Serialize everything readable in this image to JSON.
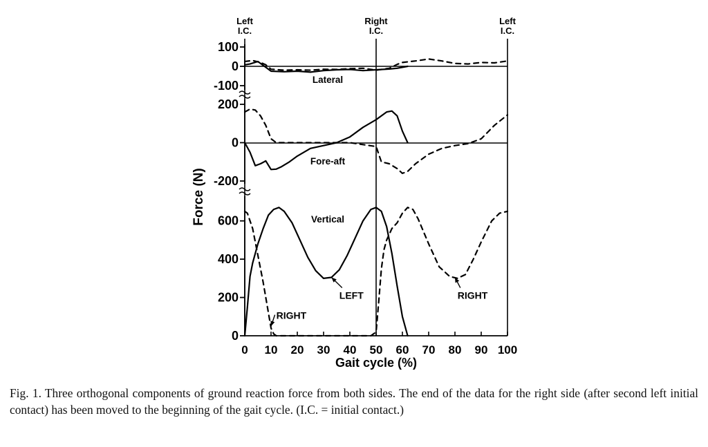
{
  "chart_data": {
    "type": "line",
    "ylabel": "Force (N)",
    "xlabel": "Gait cycle (%)",
    "x_range": [
      0,
      100
    ],
    "x_ticks": [
      "0",
      "10",
      "20",
      "30",
      "40",
      "50",
      "60",
      "70",
      "80",
      "90",
      "100"
    ],
    "event_markers": [
      {
        "x": 0,
        "label": [
          "Left",
          "I.C."
        ]
      },
      {
        "x": 50,
        "label": [
          "Right",
          "I.C."
        ]
      },
      {
        "x": 100,
        "label": [
          "Left",
          "I.C."
        ]
      }
    ],
    "line_styles": {
      "LEFT": "solid",
      "RIGHT": "dashed"
    },
    "panels": [
      {
        "id": "lateral",
        "name": "Lateral",
        "ylim": [
          -100,
          100
        ],
        "y_ticks": [
          {
            "v": 100,
            "t": "100"
          },
          {
            "v": 0,
            "t": "0"
          },
          {
            "v": -100,
            "t": "-100"
          }
        ],
        "series": [
          {
            "side": "LEFT",
            "style": "solid",
            "x": [
              0,
              2,
              5,
              7,
              10,
              15,
              20,
              25,
              30,
              35,
              40,
              45,
              50,
              55,
              58,
              62
            ],
            "y": [
              8,
              12,
              25,
              5,
              -25,
              -28,
              -25,
              -30,
              -22,
              -18,
              -16,
              -22,
              -18,
              -14,
              -10,
              0
            ]
          },
          {
            "side": "RIGHT",
            "style": "dashed",
            "x": [
              0,
              3,
              6,
              8,
              10,
              15,
              20,
              25,
              30,
              35,
              40,
              45,
              50,
              55,
              58,
              60,
              65,
              70,
              75,
              80,
              85,
              90,
              95,
              100
            ],
            "y": [
              25,
              30,
              20,
              8,
              -15,
              -20,
              -18,
              -20,
              -15,
              -16,
              -12,
              -10,
              -20,
              -10,
              10,
              20,
              28,
              38,
              28,
              15,
              12,
              20,
              18,
              28
            ]
          }
        ]
      },
      {
        "id": "fore-aft",
        "name": "Fore-aft",
        "ylim": [
          -200,
          200
        ],
        "y_ticks": [
          {
            "v": 200,
            "t": "200"
          },
          {
            "v": 0,
            "t": "0"
          },
          {
            "v": -200,
            "t": "-200"
          }
        ],
        "series": [
          {
            "side": "LEFT",
            "style": "solid",
            "x": [
              0,
              2,
              4,
              6,
              8,
              10,
              12,
              14,
              17,
              20,
              25,
              30,
              35,
              40,
              45,
              50,
              54,
              56,
              58,
              60,
              62
            ],
            "y": [
              0,
              -50,
              -120,
              -110,
              -95,
              -140,
              -138,
              -125,
              -100,
              -70,
              -30,
              -15,
              0,
              30,
              80,
              120,
              160,
              165,
              140,
              60,
              0
            ]
          },
          {
            "side": "RIGHT",
            "style": "dashed",
            "x": [
              0,
              2,
              4,
              6,
              8,
              10,
              12,
              15,
              20,
              30,
              40,
              50,
              52,
              55,
              58,
              60,
              62,
              65,
              70,
              75,
              80,
              85,
              90,
              95,
              100
            ],
            "y": [
              160,
              175,
              170,
              140,
              90,
              20,
              0,
              0,
              0,
              0,
              0,
              -20,
              -100,
              -110,
              -135,
              -160,
              -150,
              -110,
              -60,
              -30,
              -15,
              -5,
              20,
              90,
              145
            ]
          }
        ]
      },
      {
        "id": "vertical",
        "name": "Vertical",
        "ylim": [
          0,
          700
        ],
        "y_ticks": [
          {
            "v": 600,
            "t": "600"
          },
          {
            "v": 400,
            "t": "400"
          },
          {
            "v": 200,
            "t": "200"
          },
          {
            "v": 0,
            "t": "0"
          }
        ],
        "series": [
          {
            "side": "LEFT",
            "style": "solid",
            "x": [
              0,
              1,
              2,
              3,
              5,
              7,
              9,
              11,
              13,
              15,
              18,
              21,
              24,
              27,
              30,
              33,
              36,
              39,
              42,
              45,
              48,
              50,
              52,
              54,
              56,
              58,
              60,
              62
            ],
            "y": [
              0,
              150,
              310,
              380,
              480,
              560,
              630,
              660,
              670,
              650,
              590,
              500,
              410,
              340,
              300,
              305,
              345,
              420,
              510,
              600,
              660,
              670,
              650,
              570,
              430,
              260,
              100,
              0
            ]
          },
          {
            "side": "RIGHT",
            "style": "dashed",
            "x": [
              0,
              1,
              3,
              5,
              7,
              9,
              10,
              11,
              12,
              48,
              50,
              51,
              52,
              53,
              54,
              56,
              58,
              60,
              62,
              64,
              66,
              70,
              74,
              78,
              81,
              84,
              87,
              90,
              94,
              97,
              100
            ],
            "y": [
              650,
              640,
              560,
              420,
              280,
              120,
              40,
              10,
              0,
              0,
              20,
              180,
              350,
              450,
              500,
              560,
              590,
              640,
              670,
              660,
              610,
              480,
              360,
              310,
              300,
              320,
              400,
              490,
              600,
              640,
              650
            ]
          }
        ]
      }
    ],
    "annotations": [
      {
        "text": "RIGHT",
        "panel": "vertical",
        "x": 12,
        "y": 88,
        "arrow_to": [
          10,
          50
        ]
      },
      {
        "text": "LEFT",
        "panel": "vertical",
        "x": 36,
        "y": 193,
        "arrow_to": [
          33,
          305
        ]
      },
      {
        "text": "RIGHT",
        "panel": "vertical",
        "x": 81,
        "y": 193,
        "arrow_to": [
          80,
          305
        ]
      }
    ]
  },
  "caption": "Fig. 1. Three orthogonal components of ground reaction force from both sides. The end of the data for the right side (after second left initial contact) has been moved to the beginning of the gait cycle. (I.C. = initial contact.)"
}
